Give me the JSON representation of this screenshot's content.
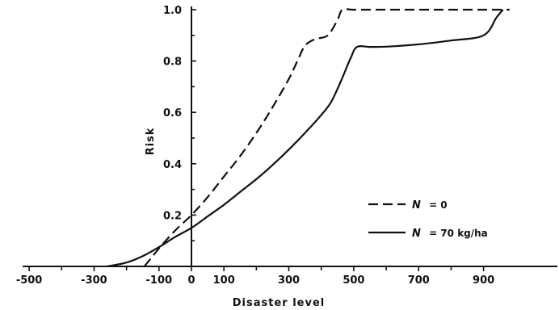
{
  "chart_data": {
    "type": "line",
    "title": "",
    "xlabel": "Disaster level",
    "ylabel": "Risk",
    "xlim": [
      -510,
      1010
    ],
    "ylim": [
      0,
      1.0
    ],
    "x_ticks": [
      -500,
      -300,
      -100,
      0,
      100,
      300,
      500,
      700,
      900
    ],
    "x_tick_labels": [
      "-500",
      "-300",
      "-100",
      "0",
      "100",
      "300",
      "500",
      "700",
      "900"
    ],
    "y_ticks": [
      0.2,
      0.4,
      0.6,
      0.8,
      1.0
    ],
    "y_tick_labels": [
      "0.2",
      "0.4",
      "0.6",
      "0.8",
      "1.0"
    ],
    "grid": false,
    "legend_position": "lower-right",
    "series": [
      {
        "name": "N = 0",
        "legend_symbol": "N",
        "legend_value": "= 0",
        "style": "dashed",
        "color": "#111111",
        "x": [
          -145,
          -100,
          -50,
          0,
          50,
          100,
          150,
          200,
          250,
          300,
          330,
          350,
          380,
          420,
          450,
          465,
          500,
          600,
          700,
          800,
          900,
          980
        ],
        "y": [
          0,
          0.07,
          0.14,
          0.2,
          0.27,
          0.35,
          0.43,
          0.52,
          0.62,
          0.73,
          0.81,
          0.86,
          0.885,
          0.9,
          0.96,
          1.0,
          1.0,
          1.0,
          1.0,
          1.0,
          1.0,
          1.0
        ]
      },
      {
        "name": "N = 70 kg/ha",
        "legend_symbol": "N",
        "legend_value": "= 70 kg/ha",
        "style": "solid",
        "color": "#111111",
        "x": [
          -260,
          -200,
          -150,
          -100,
          -50,
          0,
          50,
          100,
          150,
          200,
          250,
          300,
          350,
          400,
          430,
          460,
          490,
          510,
          550,
          600,
          700,
          800,
          900,
          940,
          960
        ],
        "y": [
          0,
          0.015,
          0.04,
          0.075,
          0.115,
          0.15,
          0.195,
          0.24,
          0.29,
          0.34,
          0.395,
          0.455,
          0.52,
          0.59,
          0.64,
          0.72,
          0.81,
          0.855,
          0.855,
          0.856,
          0.865,
          0.88,
          0.9,
          0.97,
          1.0
        ]
      }
    ]
  }
}
